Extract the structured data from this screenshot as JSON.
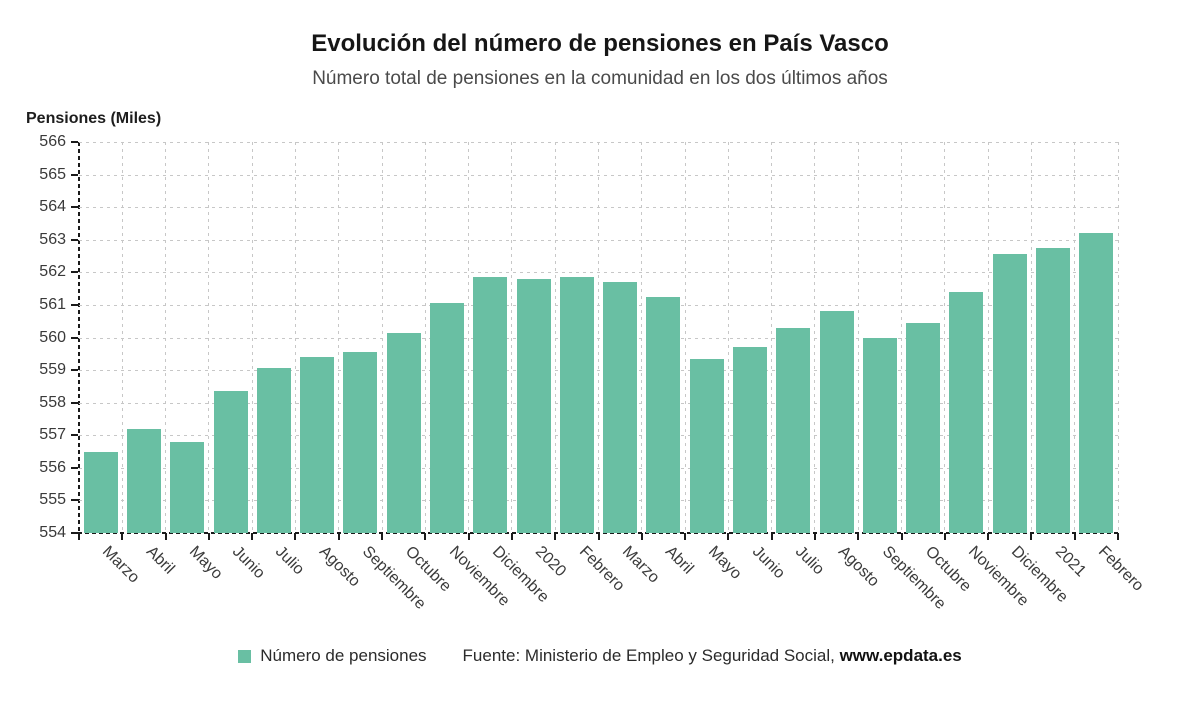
{
  "header": {
    "title": "Evolución del número de pensiones en País Vasco",
    "subtitle": "Número total de pensiones en la comunidad en los dos últimos años"
  },
  "chart_data": {
    "type": "bar",
    "title": "Evolución del número de pensiones en País Vasco",
    "subtitle": "Número total de pensiones en la comunidad en los dos últimos años",
    "ylabel": "Pensiones (Miles)",
    "xlabel": "",
    "series_name": "Número de pensiones",
    "categories": [
      "Marzo",
      "Abril",
      "Mayo",
      "Junio",
      "Julio",
      "Agosto",
      "Septiembre",
      "Octubre",
      "Noviembre",
      "Diciembre",
      "2020",
      "Febrero",
      "Marzo",
      "Abril",
      "Mayo",
      "Junio",
      "Julio",
      "Agosto",
      "Septiembre",
      "Octubre",
      "Noviembre",
      "Diciembre",
      "2021",
      "Febrero"
    ],
    "values": [
      556.5,
      557.2,
      556.8,
      558.35,
      559.05,
      559.4,
      559.55,
      560.15,
      561.05,
      561.85,
      561.8,
      561.85,
      561.7,
      561.25,
      559.35,
      559.7,
      560.3,
      560.8,
      560.0,
      560.45,
      561.4,
      562.55,
      562.75,
      563.2
    ],
    "ylim": [
      554,
      566
    ],
    "ytick_step": 1,
    "grid": true,
    "bar_color": "#69bfa3",
    "legend_position": "bottom"
  },
  "footer": {
    "legend_label": "Número de pensiones",
    "source_prefix": "Fuente: Ministerio de Empleo y Seguridad Social, ",
    "source_link": "www.epdata.es"
  }
}
